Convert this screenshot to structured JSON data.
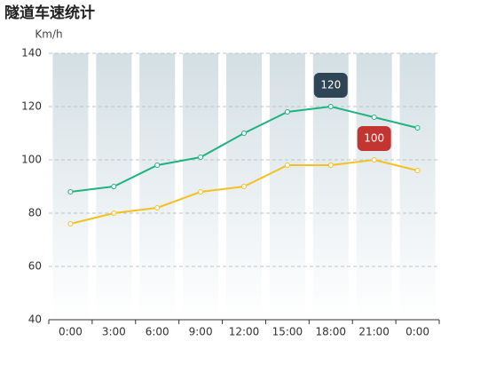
{
  "chart_data": {
    "type": "line",
    "title": "隧道车速统计",
    "y_axis_label": "Km/h",
    "categories": [
      "0:00",
      "3:00",
      "6:00",
      "9:00",
      "12:00",
      "15:00",
      "18:00",
      "21:00",
      "0:00"
    ],
    "series": [
      {
        "color": "#1fb37f",
        "mark_point": "max",
        "mark_color": "#2d4554",
        "values": [
          88,
          90,
          98,
          101,
          110,
          118,
          120,
          116,
          112
        ]
      },
      {
        "color": "#f5c021",
        "mark_point": "max",
        "mark_color": "#c23531",
        "values": [
          76,
          80,
          82,
          88,
          90,
          98,
          98,
          100,
          96
        ]
      }
    ],
    "ylim": [
      40,
      140
    ],
    "yticks": [
      40,
      60,
      80,
      100,
      120,
      140
    ],
    "grid": true
  }
}
